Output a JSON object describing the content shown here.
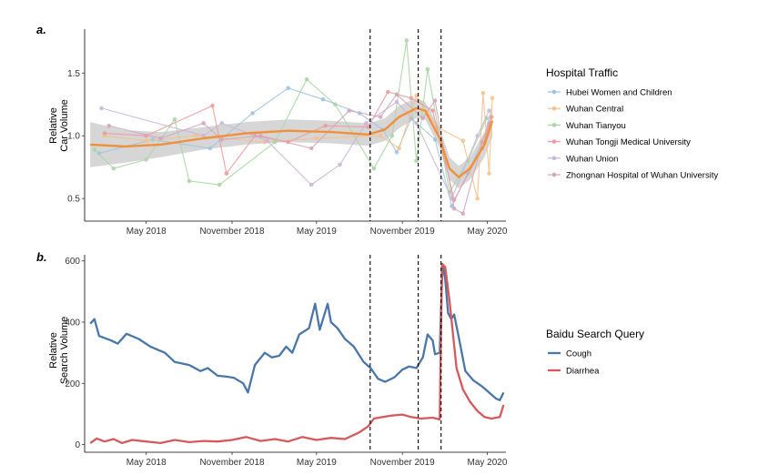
{
  "chart_data": [
    {
      "panel": "a.",
      "type": "line",
      "ylabel": [
        "Relative",
        "Car Volume"
      ],
      "xlim": [
        "2017-12-20",
        "2020-06-10"
      ],
      "ylim": [
        0.32,
        1.85
      ],
      "x_ticks": [
        {
          "date": "2018-05-01",
          "label": "May 2018"
        },
        {
          "date": "2018-11-01",
          "label": "November 2018"
        },
        {
          "date": "2019-05-01",
          "label": "May 2019"
        },
        {
          "date": "2019-11-01",
          "label": "November 2019"
        },
        {
          "date": "2020-05-01",
          "label": "May 2020"
        }
      ],
      "y_ticks": [
        0.5,
        1.0,
        1.5
      ],
      "y_tick_labels": [
        "0.5",
        "1.0",
        "1.5"
      ],
      "vlines": [
        "2019-08-24",
        "2019-12-05",
        "2020-01-23"
      ],
      "legend_title": "Hospital Traffic",
      "legend_placement": "right",
      "series": [
        {
          "name": "Hubei Women and Children",
          "color": "#9ec3e0",
          "points": [
            [
              "2018-01-20",
              0.86
            ],
            [
              "2018-05-15",
              0.97
            ],
            [
              "2018-09-15",
              0.9
            ],
            [
              "2018-12-15",
              1.18
            ],
            [
              "2019-03-01",
              1.38
            ],
            [
              "2019-05-15",
              1.29
            ],
            [
              "2019-08-01",
              1.18
            ],
            [
              "2019-09-20",
              1.05
            ],
            [
              "2019-10-20",
              0.87
            ],
            [
              "2019-11-20",
              1.14
            ],
            [
              "2020-01-10",
              0.97
            ],
            [
              "2020-02-15",
              0.44
            ],
            [
              "2020-03-20",
              0.7
            ],
            [
              "2020-05-05",
              1.08
            ]
          ]
        },
        {
          "name": "Wuhan Central",
          "color": "#f6c18b",
          "points": [
            [
              "2018-02-01",
              1.0
            ],
            [
              "2018-05-01",
              0.96
            ],
            [
              "2018-08-15",
              1.0
            ],
            [
              "2019-01-10",
              0.95
            ],
            [
              "2019-05-01",
              0.98
            ],
            [
              "2019-09-15",
              1.0
            ],
            [
              "2019-10-25",
              0.9
            ],
            [
              "2019-12-01",
              1.32
            ],
            [
              "2020-01-15",
              1.07
            ],
            [
              "2020-03-10",
              0.96
            ],
            [
              "2020-04-10",
              0.5
            ],
            [
              "2020-04-22",
              1.34
            ],
            [
              "2020-05-05",
              0.7
            ],
            [
              "2020-05-12",
              1.3
            ]
          ]
        },
        {
          "name": "Wuhan Tianyou",
          "color": "#a8d6a2",
          "points": [
            [
              "2018-01-10",
              0.89
            ],
            [
              "2018-02-20",
              0.74
            ],
            [
              "2018-05-01",
              0.81
            ],
            [
              "2018-07-01",
              1.13
            ],
            [
              "2018-08-01",
              0.64
            ],
            [
              "2018-10-05",
              0.61
            ],
            [
              "2019-02-01",
              0.95
            ],
            [
              "2019-04-10",
              1.45
            ],
            [
              "2019-06-10",
              1.25
            ],
            [
              "2019-09-01",
              0.74
            ],
            [
              "2019-10-10",
              1.0
            ],
            [
              "2019-11-10",
              1.76
            ],
            [
              "2019-12-01",
              0.8
            ],
            [
              "2019-12-25",
              1.53
            ],
            [
              "2020-02-10",
              0.55
            ],
            [
              "2020-03-20",
              0.8
            ],
            [
              "2020-04-30",
              1.14
            ]
          ]
        },
        {
          "name": "Wuhan Tongji Medical University",
          "color": "#ec9a9d",
          "points": [
            [
              "2018-02-01",
              1.02
            ],
            [
              "2018-05-01",
              1.0
            ],
            [
              "2018-09-20",
              1.24
            ],
            [
              "2018-10-20",
              0.7
            ],
            [
              "2018-12-20",
              1.0
            ],
            [
              "2019-03-01",
              0.95
            ],
            [
              "2019-05-20",
              1.08
            ],
            [
              "2019-08-20",
              1.07
            ],
            [
              "2019-10-01",
              1.35
            ],
            [
              "2019-11-20",
              1.3
            ],
            [
              "2020-01-05",
              1.2
            ],
            [
              "2020-02-20",
              0.49
            ],
            [
              "2020-04-20",
              0.9
            ],
            [
              "2020-05-10",
              1.15
            ]
          ]
        },
        {
          "name": "Wuhan Union",
          "color": "#c9b6dc",
          "points": [
            [
              "2018-01-25",
              1.22
            ],
            [
              "2018-09-01",
              1.0
            ],
            [
              "2018-10-10",
              1.1
            ],
            [
              "2019-01-15",
              0.96
            ],
            [
              "2019-04-20",
              0.61
            ],
            [
              "2019-06-20",
              0.77
            ],
            [
              "2019-08-15",
              1.1
            ],
            [
              "2019-10-20",
              1.27
            ],
            [
              "2019-12-01",
              1.1
            ],
            [
              "2020-02-15",
              0.5
            ],
            [
              "2020-04-10",
              1.0
            ],
            [
              "2020-05-05",
              1.2
            ]
          ]
        },
        {
          "name": "Zhongnan Hospital of Wuhan University",
          "color": "#d3a5bd",
          "points": [
            [
              "2018-02-10",
              1.08
            ],
            [
              "2018-06-01",
              0.98
            ],
            [
              "2018-09-01",
              1.1
            ],
            [
              "2018-10-10",
              0.97
            ],
            [
              "2019-01-01",
              1.0
            ],
            [
              "2019-04-20",
              0.9
            ],
            [
              "2019-07-10",
              1.2
            ],
            [
              "2019-09-15",
              1.15
            ],
            [
              "2019-10-20",
              1.33
            ],
            [
              "2019-12-15",
              1.14
            ],
            [
              "2020-01-10",
              1.28
            ],
            [
              "2020-02-20",
              0.42
            ],
            [
              "2020-03-10",
              0.38
            ],
            [
              "2020-04-20",
              0.95
            ],
            [
              "2020-05-05",
              1.1
            ]
          ]
        }
      ],
      "smooth": {
        "color": "#f0913a",
        "points": [
          [
            "2018-01-01",
            0.93
          ],
          [
            "2018-03-15",
            0.915
          ],
          [
            "2018-06-01",
            0.93
          ],
          [
            "2018-09-01",
            0.98
          ],
          [
            "2018-12-01",
            1.02
          ],
          [
            "2019-03-01",
            1.04
          ],
          [
            "2019-06-01",
            1.03
          ],
          [
            "2019-08-20",
            1.01
          ],
          [
            "2019-09-25",
            1.05
          ],
          [
            "2019-10-25",
            1.15
          ],
          [
            "2019-12-01",
            1.22
          ],
          [
            "2019-12-20",
            1.2
          ],
          [
            "2020-01-20",
            0.98
          ],
          [
            "2020-02-10",
            0.74
          ],
          [
            "2020-03-01",
            0.67
          ],
          [
            "2020-03-25",
            0.74
          ],
          [
            "2020-04-25",
            0.93
          ],
          [
            "2020-05-12",
            1.12
          ]
        ],
        "band": [
          0.18,
          0.13,
          0.1,
          0.09,
          0.09,
          0.09,
          0.09,
          0.09,
          0.09,
          0.09,
          0.08,
          0.07,
          0.08,
          0.09,
          0.09,
          0.09,
          0.1,
          0.13
        ]
      }
    },
    {
      "panel": "b.",
      "type": "line",
      "ylabel": [
        "Relative",
        "Search Volume"
      ],
      "xlim": [
        "2017-12-20",
        "2020-06-10"
      ],
      "ylim": [
        -25,
        620
      ],
      "x_ticks": [
        {
          "date": "2018-05-01",
          "label": "May 2018"
        },
        {
          "date": "2018-11-01",
          "label": "November 2018"
        },
        {
          "date": "2019-05-01",
          "label": "May 2019"
        },
        {
          "date": "2019-11-01",
          "label": "November 2019"
        },
        {
          "date": "2020-05-01",
          "label": "May 2020"
        }
      ],
      "y_ticks": [
        0,
        200,
        400,
        600
      ],
      "y_tick_labels": [
        "0",
        "200",
        "400",
        "600"
      ],
      "vlines": [
        "2019-08-24",
        "2019-12-05",
        "2020-01-23"
      ],
      "legend_title": "Baidu Search Query",
      "legend_placement": "right",
      "series": [
        {
          "name": "Cough",
          "color": "#4a76a8",
          "points": [
            [
              "2018-01-01",
              395
            ],
            [
              "2018-01-10",
              410
            ],
            [
              "2018-01-20",
              355
            ],
            [
              "2018-02-15",
              340
            ],
            [
              "2018-03-01",
              330
            ],
            [
              "2018-03-20",
              362
            ],
            [
              "2018-04-15",
              345
            ],
            [
              "2018-05-10",
              320
            ],
            [
              "2018-06-10",
              300
            ],
            [
              "2018-07-01",
              270
            ],
            [
              "2018-08-01",
              260
            ],
            [
              "2018-08-25",
              240
            ],
            [
              "2018-09-10",
              250
            ],
            [
              "2018-10-01",
              225
            ],
            [
              "2018-10-20",
              222
            ],
            [
              "2018-11-05",
              218
            ],
            [
              "2018-11-25",
              200
            ],
            [
              "2018-12-05",
              170
            ],
            [
              "2018-12-20",
              260
            ],
            [
              "2019-01-10",
              300
            ],
            [
              "2019-01-25",
              285
            ],
            [
              "2019-02-10",
              290
            ],
            [
              "2019-02-25",
              320
            ],
            [
              "2019-03-10",
              300
            ],
            [
              "2019-03-25",
              360
            ],
            [
              "2019-04-15",
              380
            ],
            [
              "2019-04-28",
              460
            ],
            [
              "2019-05-08",
              375
            ],
            [
              "2019-05-25",
              460
            ],
            [
              "2019-06-01",
              400
            ],
            [
              "2019-06-15",
              380
            ],
            [
              "2019-07-01",
              345
            ],
            [
              "2019-07-20",
              320
            ],
            [
              "2019-08-10",
              270
            ],
            [
              "2019-08-25",
              250
            ],
            [
              "2019-09-10",
              215
            ],
            [
              "2019-09-25",
              205
            ],
            [
              "2019-10-15",
              220
            ],
            [
              "2019-11-01",
              245
            ],
            [
              "2019-11-15",
              255
            ],
            [
              "2019-12-01",
              250
            ],
            [
              "2019-12-15",
              285
            ],
            [
              "2019-12-25",
              360
            ],
            [
              "2020-01-05",
              340
            ],
            [
              "2020-01-10",
              295
            ],
            [
              "2020-01-20",
              300
            ],
            [
              "2020-01-26",
              590
            ],
            [
              "2020-02-01",
              540
            ],
            [
              "2020-02-07",
              430
            ],
            [
              "2020-02-14",
              410
            ],
            [
              "2020-02-20",
              425
            ],
            [
              "2020-03-01",
              350
            ],
            [
              "2020-03-15",
              240
            ],
            [
              "2020-04-01",
              210
            ],
            [
              "2020-04-20",
              190
            ],
            [
              "2020-05-05",
              170
            ],
            [
              "2020-05-20",
              150
            ],
            [
              "2020-05-28",
              145
            ],
            [
              "2020-06-05",
              170
            ]
          ]
        },
        {
          "name": "Diarrhea",
          "color": "#d45a5e",
          "points": [
            [
              "2018-01-01",
              5
            ],
            [
              "2018-01-15",
              20
            ],
            [
              "2018-02-01",
              10
            ],
            [
              "2018-02-20",
              18
            ],
            [
              "2018-03-10",
              5
            ],
            [
              "2018-04-01",
              15
            ],
            [
              "2018-05-01",
              10
            ],
            [
              "2018-06-01",
              5
            ],
            [
              "2018-07-01",
              15
            ],
            [
              "2018-08-01",
              8
            ],
            [
              "2018-09-01",
              12
            ],
            [
              "2018-10-01",
              10
            ],
            [
              "2018-11-01",
              15
            ],
            [
              "2018-12-01",
              25
            ],
            [
              "2019-01-01",
              12
            ],
            [
              "2019-02-01",
              18
            ],
            [
              "2019-03-01",
              10
            ],
            [
              "2019-04-01",
              25
            ],
            [
              "2019-05-01",
              15
            ],
            [
              "2019-06-01",
              22
            ],
            [
              "2019-07-01",
              18
            ],
            [
              "2019-08-01",
              40
            ],
            [
              "2019-08-20",
              60
            ],
            [
              "2019-09-01",
              85
            ],
            [
              "2019-09-20",
              90
            ],
            [
              "2019-10-10",
              95
            ],
            [
              "2019-11-01",
              98
            ],
            [
              "2019-11-20",
              90
            ],
            [
              "2019-12-10",
              85
            ],
            [
              "2020-01-05",
              88
            ],
            [
              "2020-01-20",
              82
            ],
            [
              "2020-01-25",
              590
            ],
            [
              "2020-02-01",
              580
            ],
            [
              "2020-02-10",
              470
            ],
            [
              "2020-02-25",
              250
            ],
            [
              "2020-03-10",
              180
            ],
            [
              "2020-03-25",
              140
            ],
            [
              "2020-04-10",
              110
            ],
            [
              "2020-04-25",
              90
            ],
            [
              "2020-05-10",
              85
            ],
            [
              "2020-05-28",
              90
            ],
            [
              "2020-06-05",
              130
            ]
          ]
        }
      ]
    }
  ]
}
